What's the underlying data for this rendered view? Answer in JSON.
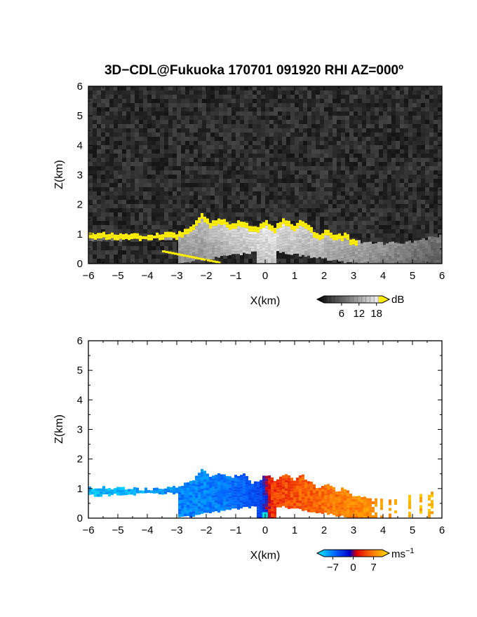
{
  "title": "3D−CDL@Fukuoka 170701 091920 RHI AZ=000º",
  "chart_data": [
    {
      "type": "heatmap",
      "quantity": "SNR",
      "xlabel": "X(km)",
      "ylabel": "Z(km)",
      "xlim": [
        -6,
        6
      ],
      "ylim": [
        0,
        6
      ],
      "xticks": [
        "−6",
        "−5",
        "−4",
        "−3",
        "−2",
        "−1",
        "0",
        "1",
        "2",
        "3",
        "4",
        "5",
        "6"
      ],
      "yticks": [
        "0",
        "1",
        "2",
        "3",
        "4",
        "5",
        "6"
      ],
      "background": "noise (dark gray)",
      "colorbar": {
        "unit": "dB",
        "ticks": [
          "6",
          "12",
          "18"
        ],
        "range": [
          0,
          20
        ],
        "colormap": "black-to-white, yellow above 18"
      },
      "cloud_base_top_km": [
        [
          -6.0,
          1.05
        ],
        [
          -5.0,
          1.0
        ],
        [
          -4.0,
          0.98
        ],
        [
          -3.0,
          1.05
        ],
        [
          -2.5,
          1.3
        ],
        [
          -2.2,
          1.7
        ],
        [
          -1.9,
          1.4
        ],
        [
          -1.5,
          1.55
        ],
        [
          -1.2,
          1.35
        ],
        [
          -0.8,
          1.5
        ],
        [
          -0.5,
          1.2
        ],
        [
          -0.2,
          1.3
        ],
        [
          0.0,
          1.45
        ],
        [
          0.3,
          1.25
        ],
        [
          0.6,
          1.5
        ],
        [
          0.9,
          1.3
        ],
        [
          1.2,
          1.45
        ],
        [
          1.5,
          1.2
        ],
        [
          1.8,
          1.0
        ],
        [
          2.0,
          1.15
        ],
        [
          2.4,
          0.95
        ],
        [
          2.7,
          1.0
        ],
        [
          3.0,
          0.75
        ],
        [
          4.0,
          0.68
        ],
        [
          5.0,
          0.75
        ],
        [
          6.0,
          0.95
        ]
      ]
    },
    {
      "type": "heatmap",
      "quantity": "radial velocity",
      "xlabel": "X(km)",
      "ylabel": "Z(km)",
      "xlim": [
        -6,
        6
      ],
      "ylim": [
        0,
        6
      ],
      "xticks": [
        "−6",
        "−5",
        "−4",
        "−3",
        "−2",
        "−1",
        "0",
        "1",
        "2",
        "3",
        "4",
        "5",
        "6"
      ],
      "yticks": [
        "0",
        "1",
        "2",
        "3",
        "4",
        "5",
        "6"
      ],
      "background": "white",
      "colorbar": {
        "unit": "ms",
        "unit_exp": "−1",
        "ticks": [
          "−7",
          "0",
          "7"
        ],
        "range": [
          -10,
          10
        ],
        "colormap": "cyan-blue-red-orange-yellow"
      },
      "velocity_profile": [
        [
          -6.0,
          -8
        ],
        [
          -5.0,
          -8
        ],
        [
          -4.0,
          -7
        ],
        [
          -3.0,
          -6
        ],
        [
          -2.0,
          -6
        ],
        [
          -1.0,
          -5
        ],
        [
          -0.2,
          -3
        ],
        [
          0.2,
          3
        ],
        [
          1.0,
          4
        ],
        [
          2.0,
          5
        ],
        [
          3.0,
          6
        ],
        [
          4.0,
          7
        ],
        [
          5.0,
          8
        ],
        [
          6.0,
          8
        ]
      ]
    }
  ]
}
